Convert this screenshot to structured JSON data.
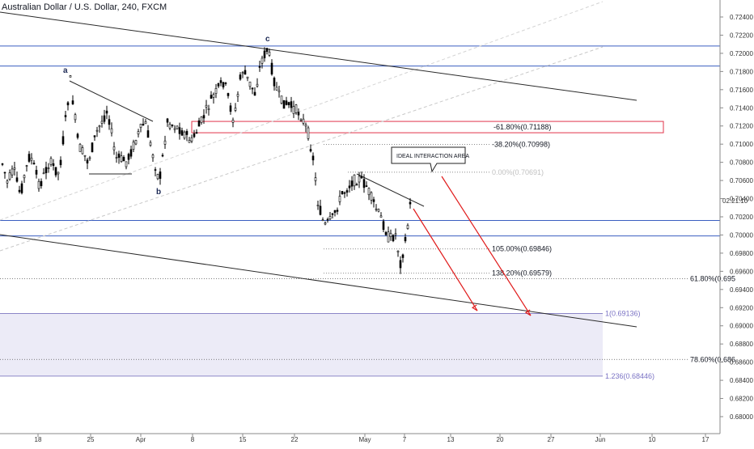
{
  "symbol_title": "Australian Dollar / U.S. Dollar, 240, FXCM",
  "clock": "02:21:10",
  "chart_data": {
    "type": "candlestick",
    "ylim": [
      0.6796,
      0.725
    ],
    "y_ticks": [
      0.724,
      0.722,
      0.72,
      0.718,
      0.716,
      0.714,
      0.712,
      0.71,
      0.708,
      0.706,
      0.704,
      0.702,
      0.7,
      0.698,
      0.696,
      0.694,
      0.692,
      0.69,
      0.688,
      0.686,
      0.684,
      0.682,
      0.68
    ],
    "x_ticks": [
      "18",
      "25",
      "Apr",
      "8",
      "15",
      "22",
      "May",
      "7",
      "13",
      "20",
      "27",
      "Jun",
      "10",
      "17"
    ],
    "wave_labels": [
      "a",
      "b",
      "c"
    ],
    "callout": "IDEAL INTERACTION AREA",
    "fib_levels": [
      {
        "label": "-61.80%(0.71188)",
        "value": 0.71188
      },
      {
        "label": "-38.20%(0.70998)",
        "value": 0.70998
      },
      {
        "label": "0.00%(0.70691)",
        "value": 0.70691
      },
      {
        "label": "105.00%(0.69846)",
        "value": 0.69846
      },
      {
        "label": "138.20%(0.69579)",
        "value": 0.69579
      }
    ],
    "right_fib_labels": [
      {
        "label": "61.80%(0.695",
        "value": 0.6952
      },
      {
        "label": "78.60%(0.686",
        "value": 0.6863
      }
    ],
    "extension_labels": [
      {
        "label": "1(0.69136)",
        "value": 0.69136
      },
      {
        "label": "1.236(0.68446)",
        "value": 0.68446
      }
    ],
    "horizontal_levels": [
      0.7208,
      0.7186,
      0.7016,
      0.6999
    ],
    "colors": {
      "up": "#ffffff",
      "down": "#000000",
      "candle_border": "#000000",
      "level_line": "#3a5ec0",
      "fib_box": "#e0334a",
      "arrow": "#e01b1b",
      "zone_fill": "#ecebf7",
      "trendline": "#2a2a2a",
      "grid": "#dcdcdc"
    }
  }
}
